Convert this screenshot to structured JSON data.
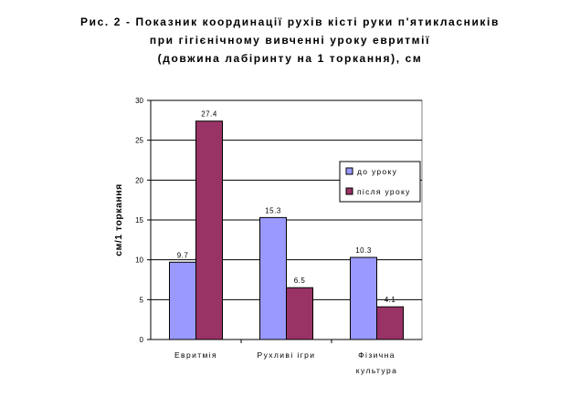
{
  "chart_data": {
    "type": "bar",
    "title": [
      "Рис. 2 - Показник координації рухів кісті руки п'ятикласників",
      "при гігієнічному вивченні уроку евритмії",
      "(довжина лабіринту на 1 торкання), см"
    ],
    "xlabel": "",
    "ylabel": "см/1 торкання",
    "ylim": [
      0,
      30
    ],
    "yticks": [
      0,
      5,
      10,
      15,
      20,
      25,
      30
    ],
    "categories": [
      [
        "Евритмія"
      ],
      [
        "Рухливі ігри"
      ],
      [
        "Фізична",
        "культура"
      ]
    ],
    "series": [
      {
        "name": "до уроку",
        "color": "#9999ff",
        "values": [
          9.7,
          15.3,
          10.3
        ],
        "labels": [
          "9.7",
          "15.3",
          "10.3"
        ]
      },
      {
        "name": "після уроку",
        "color": "#993366",
        "values": [
          27.4,
          6.5,
          4.1
        ],
        "labels": [
          "27.4",
          "6.5",
          "4.1"
        ]
      }
    ],
    "grid": true,
    "legend": "right"
  }
}
